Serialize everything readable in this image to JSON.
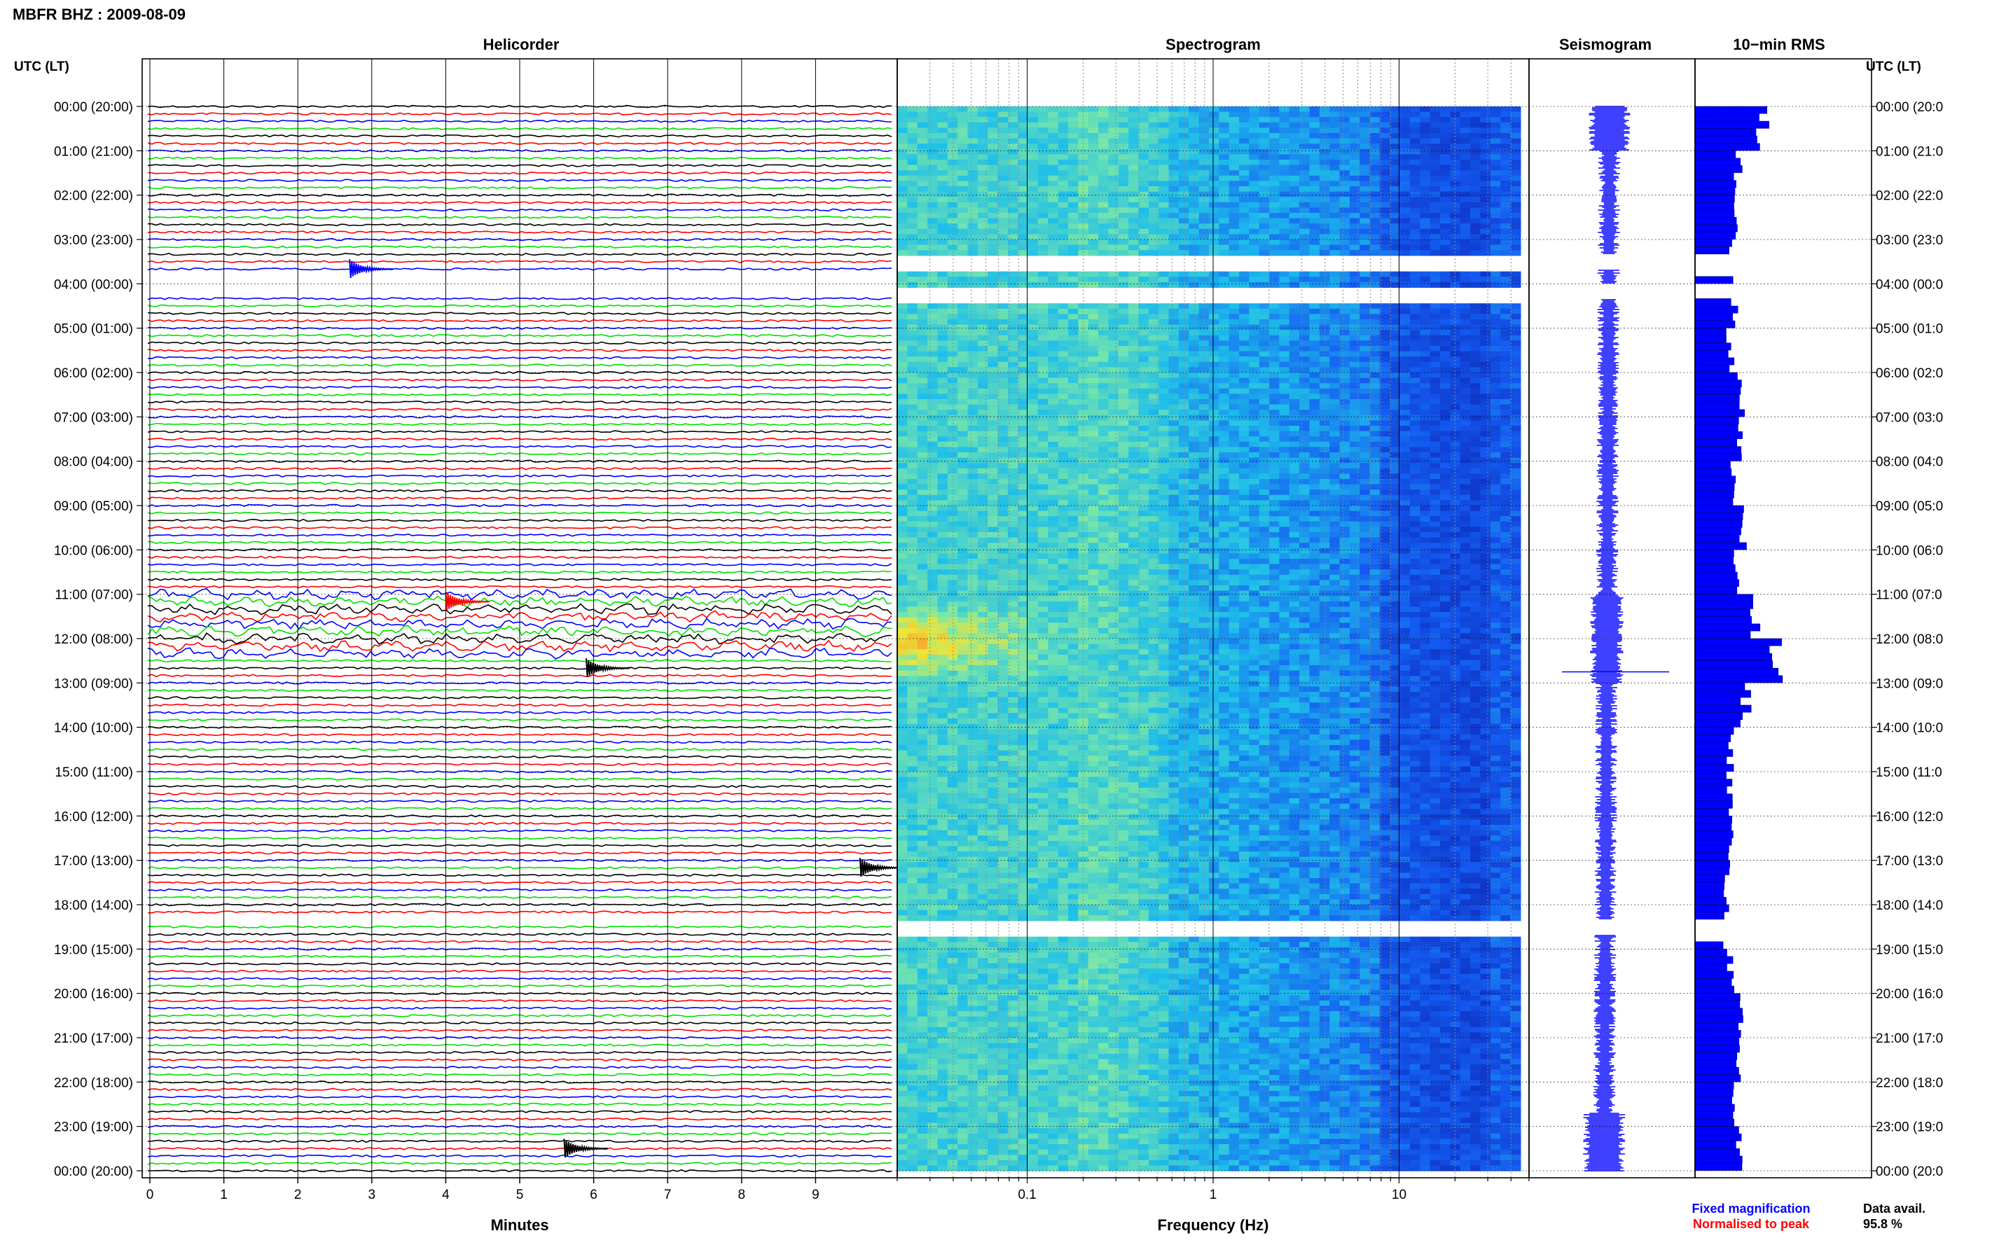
{
  "title": "MBFR BHZ : 2009-08-09",
  "panels": {
    "helicorder": "Helicorder",
    "spectrogram": "Spectrogram",
    "seismogram": "Seismogram",
    "rms": "10−min RMS"
  },
  "left_axis_header": "UTC (LT)",
  "right_axis_header": "UTC (LT)",
  "time_labels_left": [
    "00:00 (20:00)",
    "01:00 (21:00)",
    "02:00 (22:00)",
    "03:00 (23:00)",
    "04:00 (00:00)",
    "05:00 (01:00)",
    "06:00 (02:00)",
    "07:00 (03:00)",
    "08:00 (04:00)",
    "09:00 (05:00)",
    "10:00 (06:00)",
    "11:00 (07:00)",
    "12:00 (08:00)",
    "13:00 (09:00)",
    "14:00 (10:00)",
    "15:00 (11:00)",
    "16:00 (12:00)",
    "17:00 (13:00)",
    "18:00 (14:00)",
    "19:00 (15:00)",
    "20:00 (16:00)",
    "21:00 (17:00)",
    "22:00 (18:00)",
    "23:00 (19:00)",
    "00:00 (20:00)"
  ],
  "time_labels_right": [
    "00:00 (20:0",
    "01:00 (21:0",
    "02:00 (22:0",
    "03:00 (23:0",
    "04:00 (00:0",
    "05:00 (01:0",
    "06:00 (02:0",
    "07:00 (03:0",
    "08:00 (04:0",
    "09:00 (05:0",
    "10:00 (06:0",
    "11:00 (07:0",
    "12:00 (08:0",
    "13:00 (09:0",
    "14:00 (10:0",
    "15:00 (11:0",
    "16:00 (12:0",
    "17:00 (13:0",
    "18:00 (14:0",
    "19:00 (15:0",
    "20:00 (16:0",
    "21:00 (17:0",
    "22:00 (18:0",
    "23:00 (19:0",
    "00:00 (20:0"
  ],
  "helicorder_xlabel": "Minutes",
  "spectrogram_xlabel": "Frequency (Hz)",
  "legend": {
    "fixed": "Fixed magnification",
    "normalised": "Normalised to peak"
  },
  "data_avail": {
    "label": "Data avail.",
    "value": "95.8 %"
  },
  "colors": {
    "trace_cycle": [
      "#000000",
      "#ff0000",
      "#0000ff",
      "#00e000"
    ],
    "seismogram": "#0000ff",
    "rms": "#0000ff",
    "fixed_legend": "#0000ff",
    "normalised_legend": "#ff0000"
  },
  "chart_data": [
    {
      "type": "line",
      "panel": "Helicorder",
      "xlabel": "Minutes",
      "x_ticks": [
        0,
        1,
        2,
        3,
        4,
        5,
        6,
        7,
        8,
        9
      ],
      "xlim": [
        0,
        10
      ],
      "ylim_hours": [
        0,
        24
      ],
      "trace_interval_minutes": 10,
      "gaps_hours": [
        [
          3.83,
          4.17
        ],
        [
          18.33,
          18.5
        ]
      ],
      "events": [
        {
          "hour": 12.67,
          "minute": 5.9,
          "trace_color": "black"
        },
        {
          "hour": 3.67,
          "minute": 2.7,
          "trace_color": "blue"
        },
        {
          "hour": 11.17,
          "minute": 4.0,
          "trace_color": "red"
        },
        {
          "hour": 17.17,
          "minute": 9.6,
          "trace_color": "black"
        },
        {
          "hour": 23.5,
          "minute": 5.6,
          "trace_color": "black"
        }
      ]
    },
    {
      "type": "heatmap",
      "panel": "Spectrogram",
      "xlabel": "Frequency (Hz)",
      "x_scale": "log",
      "x_ticks": [
        0.1,
        1,
        10
      ],
      "xlim": [
        0.02,
        50
      ],
      "ylim_hours": [
        0,
        24
      ],
      "gaps_hours": [
        [
          3.33,
          3.67
        ],
        [
          4.0,
          4.33
        ],
        [
          18.33,
          18.67
        ]
      ],
      "high_energy_hours": [
        11.0,
        13.0
      ],
      "high_energy_freq_hz": [
        0.02,
        0.2
      ]
    },
    {
      "type": "line",
      "panel": "Seismogram",
      "ylim_hours": [
        0,
        24
      ],
      "peak_hour": 12.75
    },
    {
      "type": "bar",
      "panel": "10−min RMS",
      "orientation": "horizontal",
      "ylim_hours": [
        0,
        24
      ],
      "bin_minutes": 10,
      "hourly_rms_relative": [
        0.85,
        0.55,
        0.55,
        0.45,
        0.5,
        0.45,
        0.6,
        0.55,
        0.5,
        0.6,
        0.5,
        0.75,
        1.0,
        0.65,
        0.45,
        0.45,
        0.45,
        0.4,
        0.4,
        0.45,
        0.55,
        0.55,
        0.5,
        0.55
      ]
    }
  ]
}
